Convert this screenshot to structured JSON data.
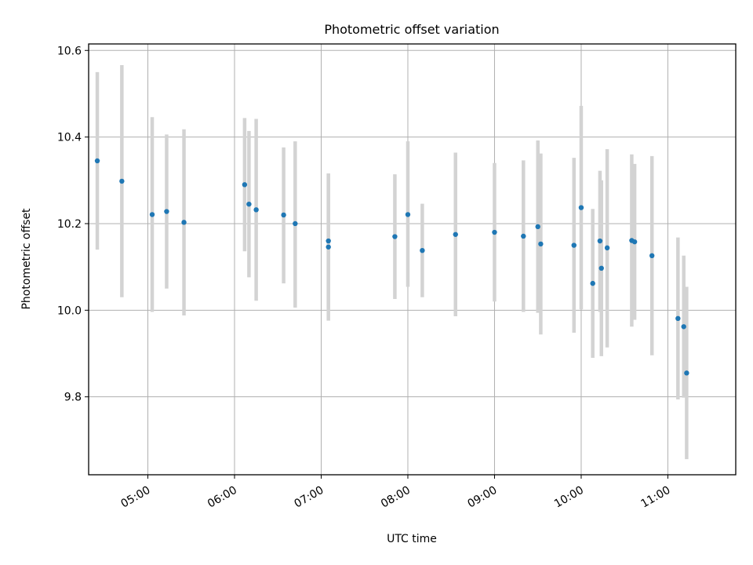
{
  "chart_data": {
    "type": "scatter",
    "title": "Photometric offset variation",
    "xlabel": "UTC time",
    "ylabel": "Photometric offset",
    "xlim": [
      "04:19",
      "11:47"
    ],
    "ylim": [
      9.62,
      10.615
    ],
    "x_ticks": [
      "05:00",
      "06:00",
      "07:00",
      "08:00",
      "09:00",
      "10:00",
      "11:00"
    ],
    "y_ticks": [
      9.8,
      10.0,
      10.2,
      10.4,
      10.6
    ],
    "grid": true,
    "colors": {
      "point": "#1f77b4",
      "errorbar": "#d3d3d3",
      "grid": "#b0b0b0"
    },
    "points": [
      {
        "x": "04:25",
        "y": 10.345,
        "yerr_low": 10.14,
        "yerr_high": 10.55
      },
      {
        "x": "04:42",
        "y": 10.298,
        "yerr_low": 10.03,
        "yerr_high": 10.566
      },
      {
        "x": "05:03",
        "y": 10.221,
        "yerr_low": 9.996,
        "yerr_high": 10.446
      },
      {
        "x": "05:13",
        "y": 10.228,
        "yerr_low": 10.05,
        "yerr_high": 10.406
      },
      {
        "x": "05:25",
        "y": 10.203,
        "yerr_low": 9.988,
        "yerr_high": 10.418
      },
      {
        "x": "06:07",
        "y": 10.29,
        "yerr_low": 10.136,
        "yerr_high": 10.444
      },
      {
        "x": "06:10",
        "y": 10.245,
        "yerr_low": 10.076,
        "yerr_high": 10.414
      },
      {
        "x": "06:15",
        "y": 10.232,
        "yerr_low": 10.022,
        "yerr_high": 10.442
      },
      {
        "x": "06:34",
        "y": 10.22,
        "yerr_low": 10.062,
        "yerr_high": 10.376
      },
      {
        "x": "06:42",
        "y": 10.2,
        "yerr_low": 10.006,
        "yerr_high": 10.39
      },
      {
        "x": "07:05",
        "y": 10.16,
        "yerr_low": 10.004,
        "yerr_high": 10.316
      },
      {
        "x": "07:05",
        "y": 10.146,
        "yerr_low": 9.976,
        "yerr_high": 10.316
      },
      {
        "x": "07:51",
        "y": 10.17,
        "yerr_low": 10.026,
        "yerr_high": 10.314
      },
      {
        "x": "08:00",
        "y": 10.221,
        "yerr_low": 10.054,
        "yerr_high": 10.39
      },
      {
        "x": "08:10",
        "y": 10.138,
        "yerr_low": 10.03,
        "yerr_high": 10.246
      },
      {
        "x": "08:33",
        "y": 10.175,
        "yerr_low": 9.986,
        "yerr_high": 10.364
      },
      {
        "x": "09:00",
        "y": 10.18,
        "yerr_low": 10.02,
        "yerr_high": 10.34
      },
      {
        "x": "09:20",
        "y": 10.171,
        "yerr_low": 9.996,
        "yerr_high": 10.346
      },
      {
        "x": "09:30",
        "y": 10.193,
        "yerr_low": 9.994,
        "yerr_high": 10.392
      },
      {
        "x": "09:32",
        "y": 10.153,
        "yerr_low": 9.944,
        "yerr_high": 10.362
      },
      {
        "x": "09:55",
        "y": 10.15,
        "yerr_low": 9.948,
        "yerr_high": 10.352
      },
      {
        "x": "10:00",
        "y": 10.237,
        "yerr_low": 10.002,
        "yerr_high": 10.472
      },
      {
        "x": "10:08",
        "y": 10.062,
        "yerr_low": 9.89,
        "yerr_high": 10.234
      },
      {
        "x": "10:13",
        "y": 10.16,
        "yerr_low": 9.996,
        "yerr_high": 10.322
      },
      {
        "x": "10:14",
        "y": 10.097,
        "yerr_low": 9.894,
        "yerr_high": 10.3
      },
      {
        "x": "10:18",
        "y": 10.144,
        "yerr_low": 9.914,
        "yerr_high": 10.372
      },
      {
        "x": "10:35",
        "y": 10.161,
        "yerr_low": 9.962,
        "yerr_high": 10.36
      },
      {
        "x": "10:37",
        "y": 10.158,
        "yerr_low": 9.978,
        "yerr_high": 10.338
      },
      {
        "x": "10:49",
        "y": 10.126,
        "yerr_low": 9.896,
        "yerr_high": 10.356
      },
      {
        "x": "11:07",
        "y": 9.981,
        "yerr_low": 9.794,
        "yerr_high": 10.168
      },
      {
        "x": "11:11",
        "y": 9.962,
        "yerr_low": 9.798,
        "yerr_high": 10.126
      },
      {
        "x": "11:13",
        "y": 9.855,
        "yerr_low": 9.656,
        "yerr_high": 10.054
      }
    ]
  }
}
